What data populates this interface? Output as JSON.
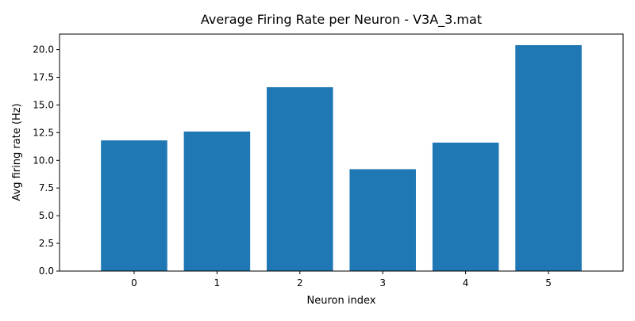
{
  "chart_data": {
    "type": "bar",
    "title": "Average Firing Rate per Neuron - V3A_3.mat",
    "xlabel": "Neuron index",
    "ylabel": "Avg firing rate (Hz)",
    "categories": [
      "0",
      "1",
      "2",
      "3",
      "4",
      "5"
    ],
    "values": [
      11.8,
      12.6,
      16.6,
      9.2,
      11.6,
      20.4
    ],
    "ylim": [
      0,
      21.4
    ],
    "yticks": [
      "0.0",
      "2.5",
      "5.0",
      "7.5",
      "10.0",
      "12.5",
      "15.0",
      "17.5",
      "20.0"
    ],
    "grid": false,
    "bar_color": "#1f77b4"
  }
}
